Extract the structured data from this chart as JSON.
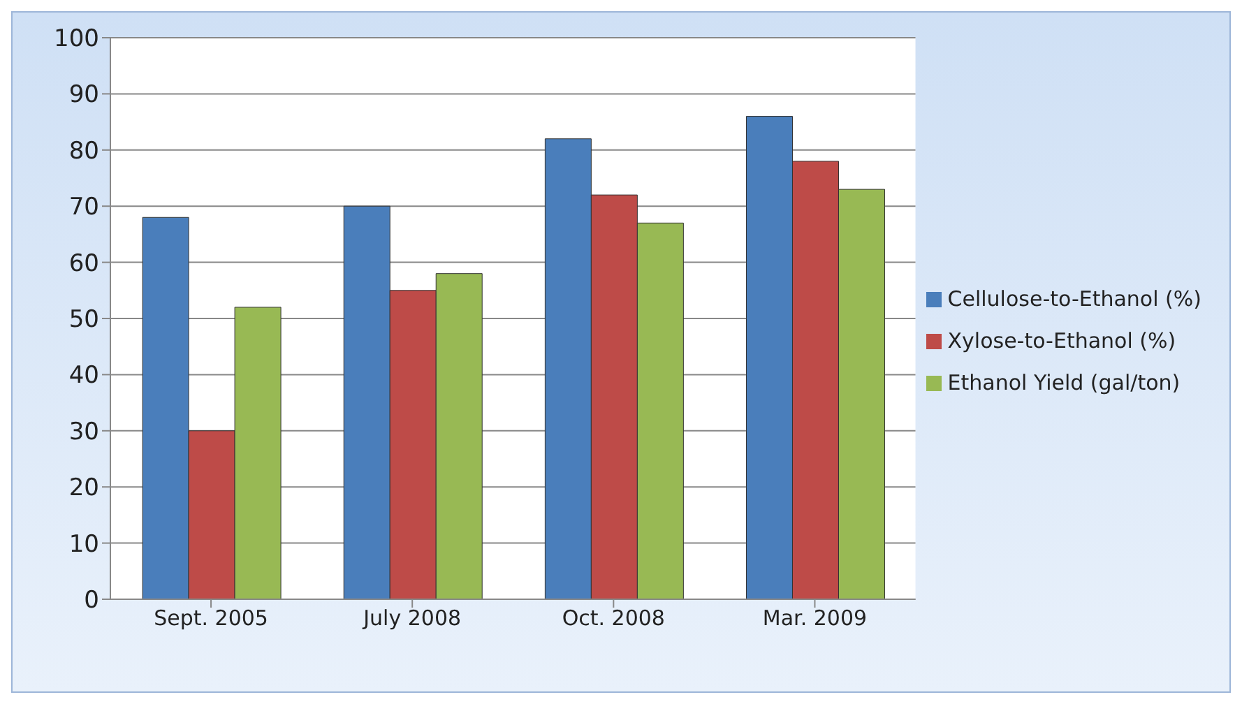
{
  "chart_data": {
    "type": "bar",
    "categories": [
      "Sept. 2005",
      "July 2008",
      "Oct. 2008",
      "Mar. 2009"
    ],
    "series": [
      {
        "name": "Cellulose-to-Ethanol (%)",
        "color": "#4a7ebb",
        "values": [
          68,
          70,
          82,
          86
        ]
      },
      {
        "name": "Xylose-to-Ethanol (%)",
        "color": "#be4b48",
        "values": [
          30,
          55,
          72,
          78
        ]
      },
      {
        "name": "Ethanol Yield (gal/ton)",
        "color": "#98b954",
        "values": [
          52,
          58,
          67,
          73
        ]
      }
    ],
    "ylim": [
      0,
      100
    ],
    "yticks": [
      0,
      10,
      20,
      30,
      40,
      50,
      60,
      70,
      80,
      90,
      100
    ],
    "grid": "y",
    "legend": "right"
  }
}
